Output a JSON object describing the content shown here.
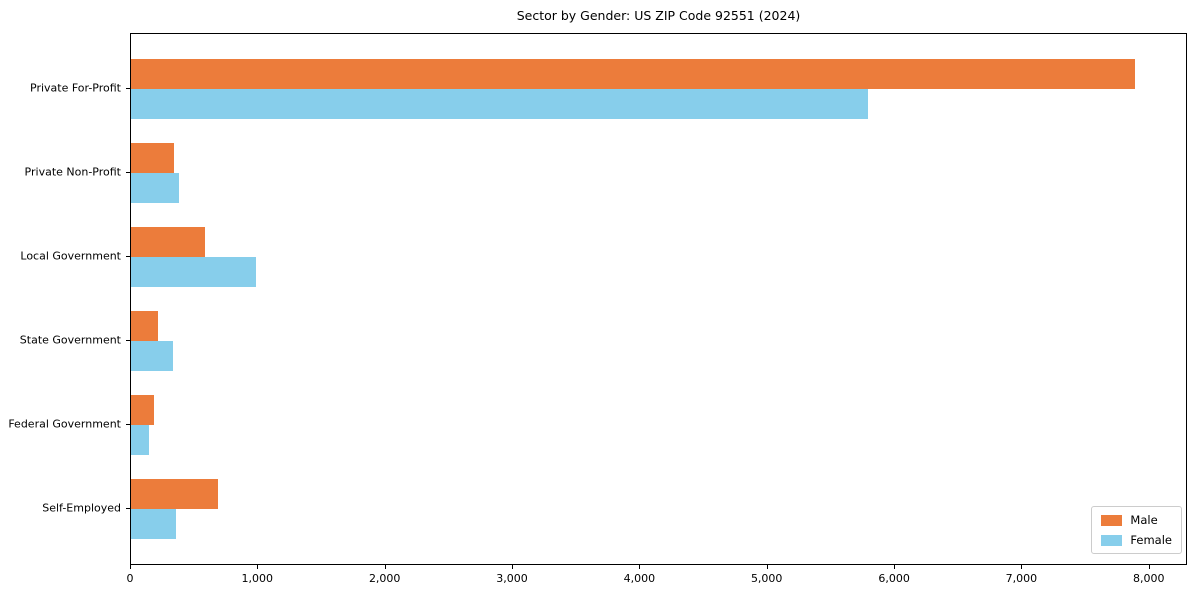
{
  "title": "Sector by Gender: US ZIP Code 92551 (2024)",
  "colors": {
    "male": "#EC7C3B",
    "female": "#87CEEB",
    "axis": "#000000",
    "legend_border": "#cccccc",
    "background": "#ffffff"
  },
  "legend": {
    "male_label": "Male",
    "female_label": "Female",
    "position": "lower right"
  },
  "chart_data": {
    "type": "bar",
    "orientation": "horizontal",
    "title": "Sector by Gender: US ZIP Code 92551 (2024)",
    "xlabel": "",
    "ylabel": "",
    "grid": false,
    "legend_position": "lower right",
    "categories": [
      "Private For-Profit",
      "Private Non-Profit",
      "Local Government",
      "State Government",
      "Federal Government",
      "Self-Employed"
    ],
    "series": [
      {
        "name": "Male",
        "color": "#EC7C3B",
        "values": [
          7900,
          340,
          585,
          215,
          180,
          685
        ]
      },
      {
        "name": "Female",
        "color": "#87CEEB",
        "values": [
          5800,
          380,
          980,
          330,
          145,
          355
        ]
      }
    ],
    "xlim": [
      0,
      8300
    ],
    "xticks": [
      0,
      1000,
      2000,
      3000,
      4000,
      5000,
      6000,
      7000,
      8000
    ],
    "xtick_labels": [
      "0",
      "1,000",
      "2,000",
      "3,000",
      "4,000",
      "5,000",
      "6,000",
      "7,000",
      "8,000"
    ]
  }
}
